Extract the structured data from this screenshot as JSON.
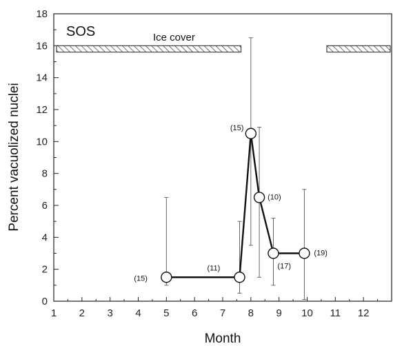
{
  "chart_data": {
    "type": "line",
    "panel_label": "SOS",
    "xlabel": "Month",
    "ylabel": "Percent vacuolized nuclei",
    "xlim": [
      1,
      13
    ],
    "ylim": [
      0,
      18
    ],
    "x_ticks": [
      1,
      2,
      3,
      4,
      5,
      6,
      7,
      8,
      9,
      10,
      11,
      12
    ],
    "y_ticks": [
      0,
      2,
      4,
      6,
      8,
      10,
      12,
      14,
      16,
      18
    ],
    "grid": false,
    "series": [
      {
        "x": [
          5.0,
          7.6,
          8.0,
          8.3,
          8.8,
          9.9
        ],
        "y": [
          1.5,
          1.5,
          10.5,
          6.5,
          3.0,
          3.0
        ],
        "err_low": [
          1.0,
          0.5,
          3.5,
          1.5,
          1.0,
          0.1
        ],
        "err_high": [
          6.5,
          5.0,
          16.5,
          10.9,
          5.2,
          7.0
        ],
        "n_labels": [
          "(15)",
          "(11)",
          "(15)",
          "(10)",
          "(17)",
          "(19)"
        ]
      }
    ],
    "annotations": {
      "ice_cover_label": "Ice cover",
      "ice_cover_periods": [
        [
          1.0,
          7.7
        ],
        [
          10.6,
          13.0
        ]
      ],
      "ice_cover_bar_y": [
        15.6,
        16.0
      ]
    }
  }
}
